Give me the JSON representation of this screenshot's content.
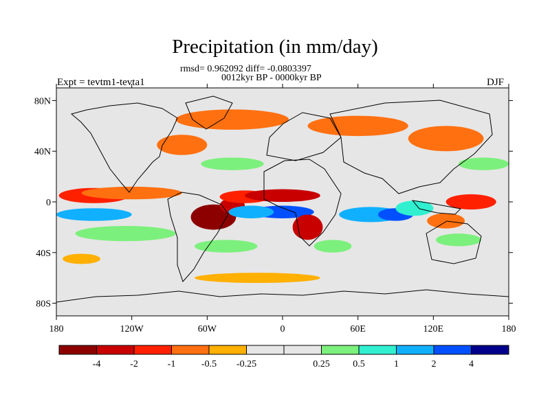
{
  "title": "Precipitation (in mm/day)",
  "stats_line": "rmsd= 0.962092 diff= -0.0803397",
  "period_line": "0012kyr BP - 0000kyr BP",
  "experiment": "Expt = tevtm1-tevta1",
  "season": "DJF",
  "lat_ticks": [
    {
      "label": "80N",
      "lat": 80
    },
    {
      "label": "40N",
      "lat": 40
    },
    {
      "label": "0",
      "lat": 0
    },
    {
      "label": "40S",
      "lat": -40
    },
    {
      "label": "80S",
      "lat": -80
    }
  ],
  "lon_ticks": [
    {
      "label": "180",
      "lon": -180
    },
    {
      "label": "120W",
      "lon": -120
    },
    {
      "label": "60W",
      "lon": -60
    },
    {
      "label": "0",
      "lon": 0
    },
    {
      "label": "60E",
      "lon": 60
    },
    {
      "label": "120E",
      "lon": 120
    },
    {
      "label": "180",
      "lon": 180
    }
  ],
  "colorbar": {
    "colors": [
      "#8c0000",
      "#c80000",
      "#ff2000",
      "#ff7010",
      "#ffb000",
      "#e6e6e6",
      "#e6e6e6",
      "#7cf07c",
      "#30f0d0",
      "#10b0ff",
      "#0050ff",
      "#00008c"
    ],
    "labels": [
      "-4",
      "-2",
      "-1",
      "-0.5",
      "-0.25",
      "0.25",
      "0.5",
      "1",
      "2",
      "4"
    ]
  },
  "anomaly_blobs": [
    {
      "lon": -150,
      "lat": 5,
      "rlon": 28,
      "rlat": 6,
      "level": "-1"
    },
    {
      "lon": -120,
      "lat": 7,
      "rlon": 40,
      "rlat": 5,
      "level": "-0.5"
    },
    {
      "lon": -150,
      "lat": -10,
      "rlon": 30,
      "rlat": 5,
      "level": "2"
    },
    {
      "lon": -125,
      "lat": -25,
      "rlon": 40,
      "rlat": 6,
      "level": "0.5"
    },
    {
      "lon": -55,
      "lat": -12,
      "rlon": 18,
      "rlat": 10,
      "level": "-4"
    },
    {
      "lon": -40,
      "lat": -3,
      "rlon": 10,
      "rlat": 6,
      "level": "-2"
    },
    {
      "lon": -30,
      "lat": 4,
      "rlon": 20,
      "rlat": 5,
      "level": "-1"
    },
    {
      "lon": 0,
      "lat": 5,
      "rlon": 30,
      "rlat": 5,
      "level": "-2"
    },
    {
      "lon": 0,
      "lat": -8,
      "rlon": 25,
      "rlat": 5,
      "level": "4"
    },
    {
      "lon": -25,
      "lat": -8,
      "rlon": 18,
      "rlat": 5,
      "level": "2"
    },
    {
      "lon": 20,
      "lat": -20,
      "rlon": 12,
      "rlat": 10,
      "level": "-2"
    },
    {
      "lon": 70,
      "lat": -10,
      "rlon": 25,
      "rlat": 6,
      "level": "2"
    },
    {
      "lon": 90,
      "lat": -10,
      "rlon": 14,
      "rlat": 5,
      "level": "4"
    },
    {
      "lon": 105,
      "lat": -5,
      "rlon": 15,
      "rlat": 6,
      "level": "1"
    },
    {
      "lon": 130,
      "lat": -15,
      "rlon": 15,
      "rlat": 6,
      "level": "-0.5"
    },
    {
      "lon": 150,
      "lat": 0,
      "rlon": 20,
      "rlat": 6,
      "level": "-1"
    },
    {
      "lon": -40,
      "lat": 65,
      "rlon": 45,
      "rlat": 8,
      "level": "-0.5"
    },
    {
      "lon": -80,
      "lat": 45,
      "rlon": 20,
      "rlat": 8,
      "level": "-0.5"
    },
    {
      "lon": 60,
      "lat": 60,
      "rlon": 40,
      "rlat": 8,
      "level": "-0.5"
    },
    {
      "lon": 130,
      "lat": 50,
      "rlon": 30,
      "rlat": 10,
      "level": "-0.5"
    },
    {
      "lon": -20,
      "lat": -60,
      "rlon": 50,
      "rlat": 4,
      "level": "-0.25"
    },
    {
      "lon": -160,
      "lat": -45,
      "rlon": 15,
      "rlat": 4,
      "level": "-0.25"
    },
    {
      "lon": -40,
      "lat": 30,
      "rlon": 25,
      "rlat": 5,
      "level": "0.5"
    },
    {
      "lon": 160,
      "lat": 30,
      "rlon": 20,
      "rlat": 5,
      "level": "0.5"
    },
    {
      "lon": -45,
      "lat": -35,
      "rlon": 25,
      "rlat": 5,
      "level": "0.5"
    },
    {
      "lon": 40,
      "lat": -35,
      "rlon": 15,
      "rlat": 5,
      "level": "0.5"
    },
    {
      "lon": 140,
      "lat": -30,
      "rlon": 18,
      "rlat": 5,
      "level": "0.5"
    }
  ]
}
